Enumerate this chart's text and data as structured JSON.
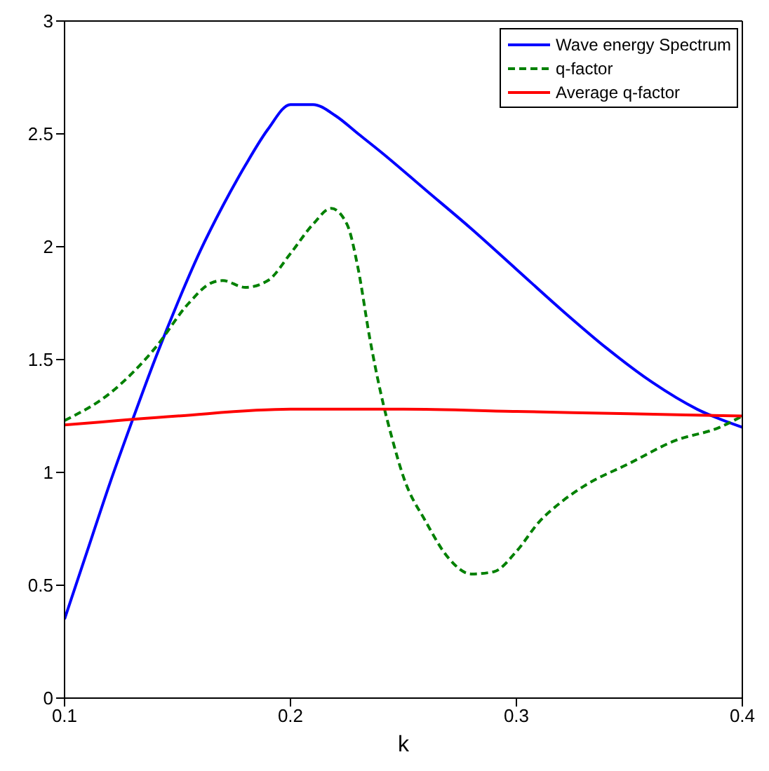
{
  "chart_data": {
    "type": "line",
    "xlabel": "k",
    "xlim": [
      0.1,
      0.4
    ],
    "xticks": [
      0.1,
      0.2,
      0.3,
      0.4
    ],
    "ylim": [
      0,
      3
    ],
    "yticks": [
      0,
      0.5,
      1,
      1.5,
      2,
      2.5,
      3
    ],
    "legend": "top right",
    "marker": "none",
    "series": [
      {
        "name": "Wave energy Spectrum",
        "color": "#0000ff",
        "line_style": "solid",
        "x": [
          0.1,
          0.11,
          0.12,
          0.13,
          0.14,
          0.15,
          0.16,
          0.17,
          0.18,
          0.19,
          0.2,
          0.21,
          0.22,
          0.23,
          0.24,
          0.26,
          0.28,
          0.3,
          0.32,
          0.34,
          0.36,
          0.38,
          0.4
        ],
        "values": [
          0.35,
          0.65,
          0.95,
          1.23,
          1.5,
          1.75,
          1.98,
          2.18,
          2.36,
          2.52,
          2.63,
          2.63,
          2.58,
          2.5,
          2.42,
          2.25,
          2.08,
          1.9,
          1.72,
          1.55,
          1.4,
          1.28,
          1.2
        ]
      },
      {
        "name": "q-factor",
        "color": "#008000",
        "line_style": "dashed",
        "x": [
          0.1,
          0.12,
          0.14,
          0.155,
          0.165,
          0.17,
          0.18,
          0.19,
          0.2,
          0.21,
          0.218,
          0.225,
          0.23,
          0.235,
          0.24,
          0.245,
          0.25,
          0.26,
          0.27,
          0.28,
          0.29,
          0.3,
          0.31,
          0.32,
          0.33,
          0.35,
          0.37,
          0.39,
          0.4
        ],
        "values": [
          1.23,
          1.35,
          1.55,
          1.75,
          1.84,
          1.85,
          1.82,
          1.85,
          1.97,
          2.1,
          2.17,
          2.1,
          1.9,
          1.6,
          1.35,
          1.15,
          0.98,
          0.78,
          0.62,
          0.55,
          0.56,
          0.65,
          0.78,
          0.87,
          0.94,
          1.04,
          1.14,
          1.2,
          1.25
        ]
      },
      {
        "name": "Average q-factor",
        "color": "#ff0000",
        "line_style": "solid",
        "x": [
          0.1,
          0.15,
          0.2,
          0.25,
          0.3,
          0.35,
          0.4
        ],
        "values": [
          1.21,
          1.25,
          1.28,
          1.28,
          1.27,
          1.26,
          1.25
        ]
      }
    ]
  }
}
